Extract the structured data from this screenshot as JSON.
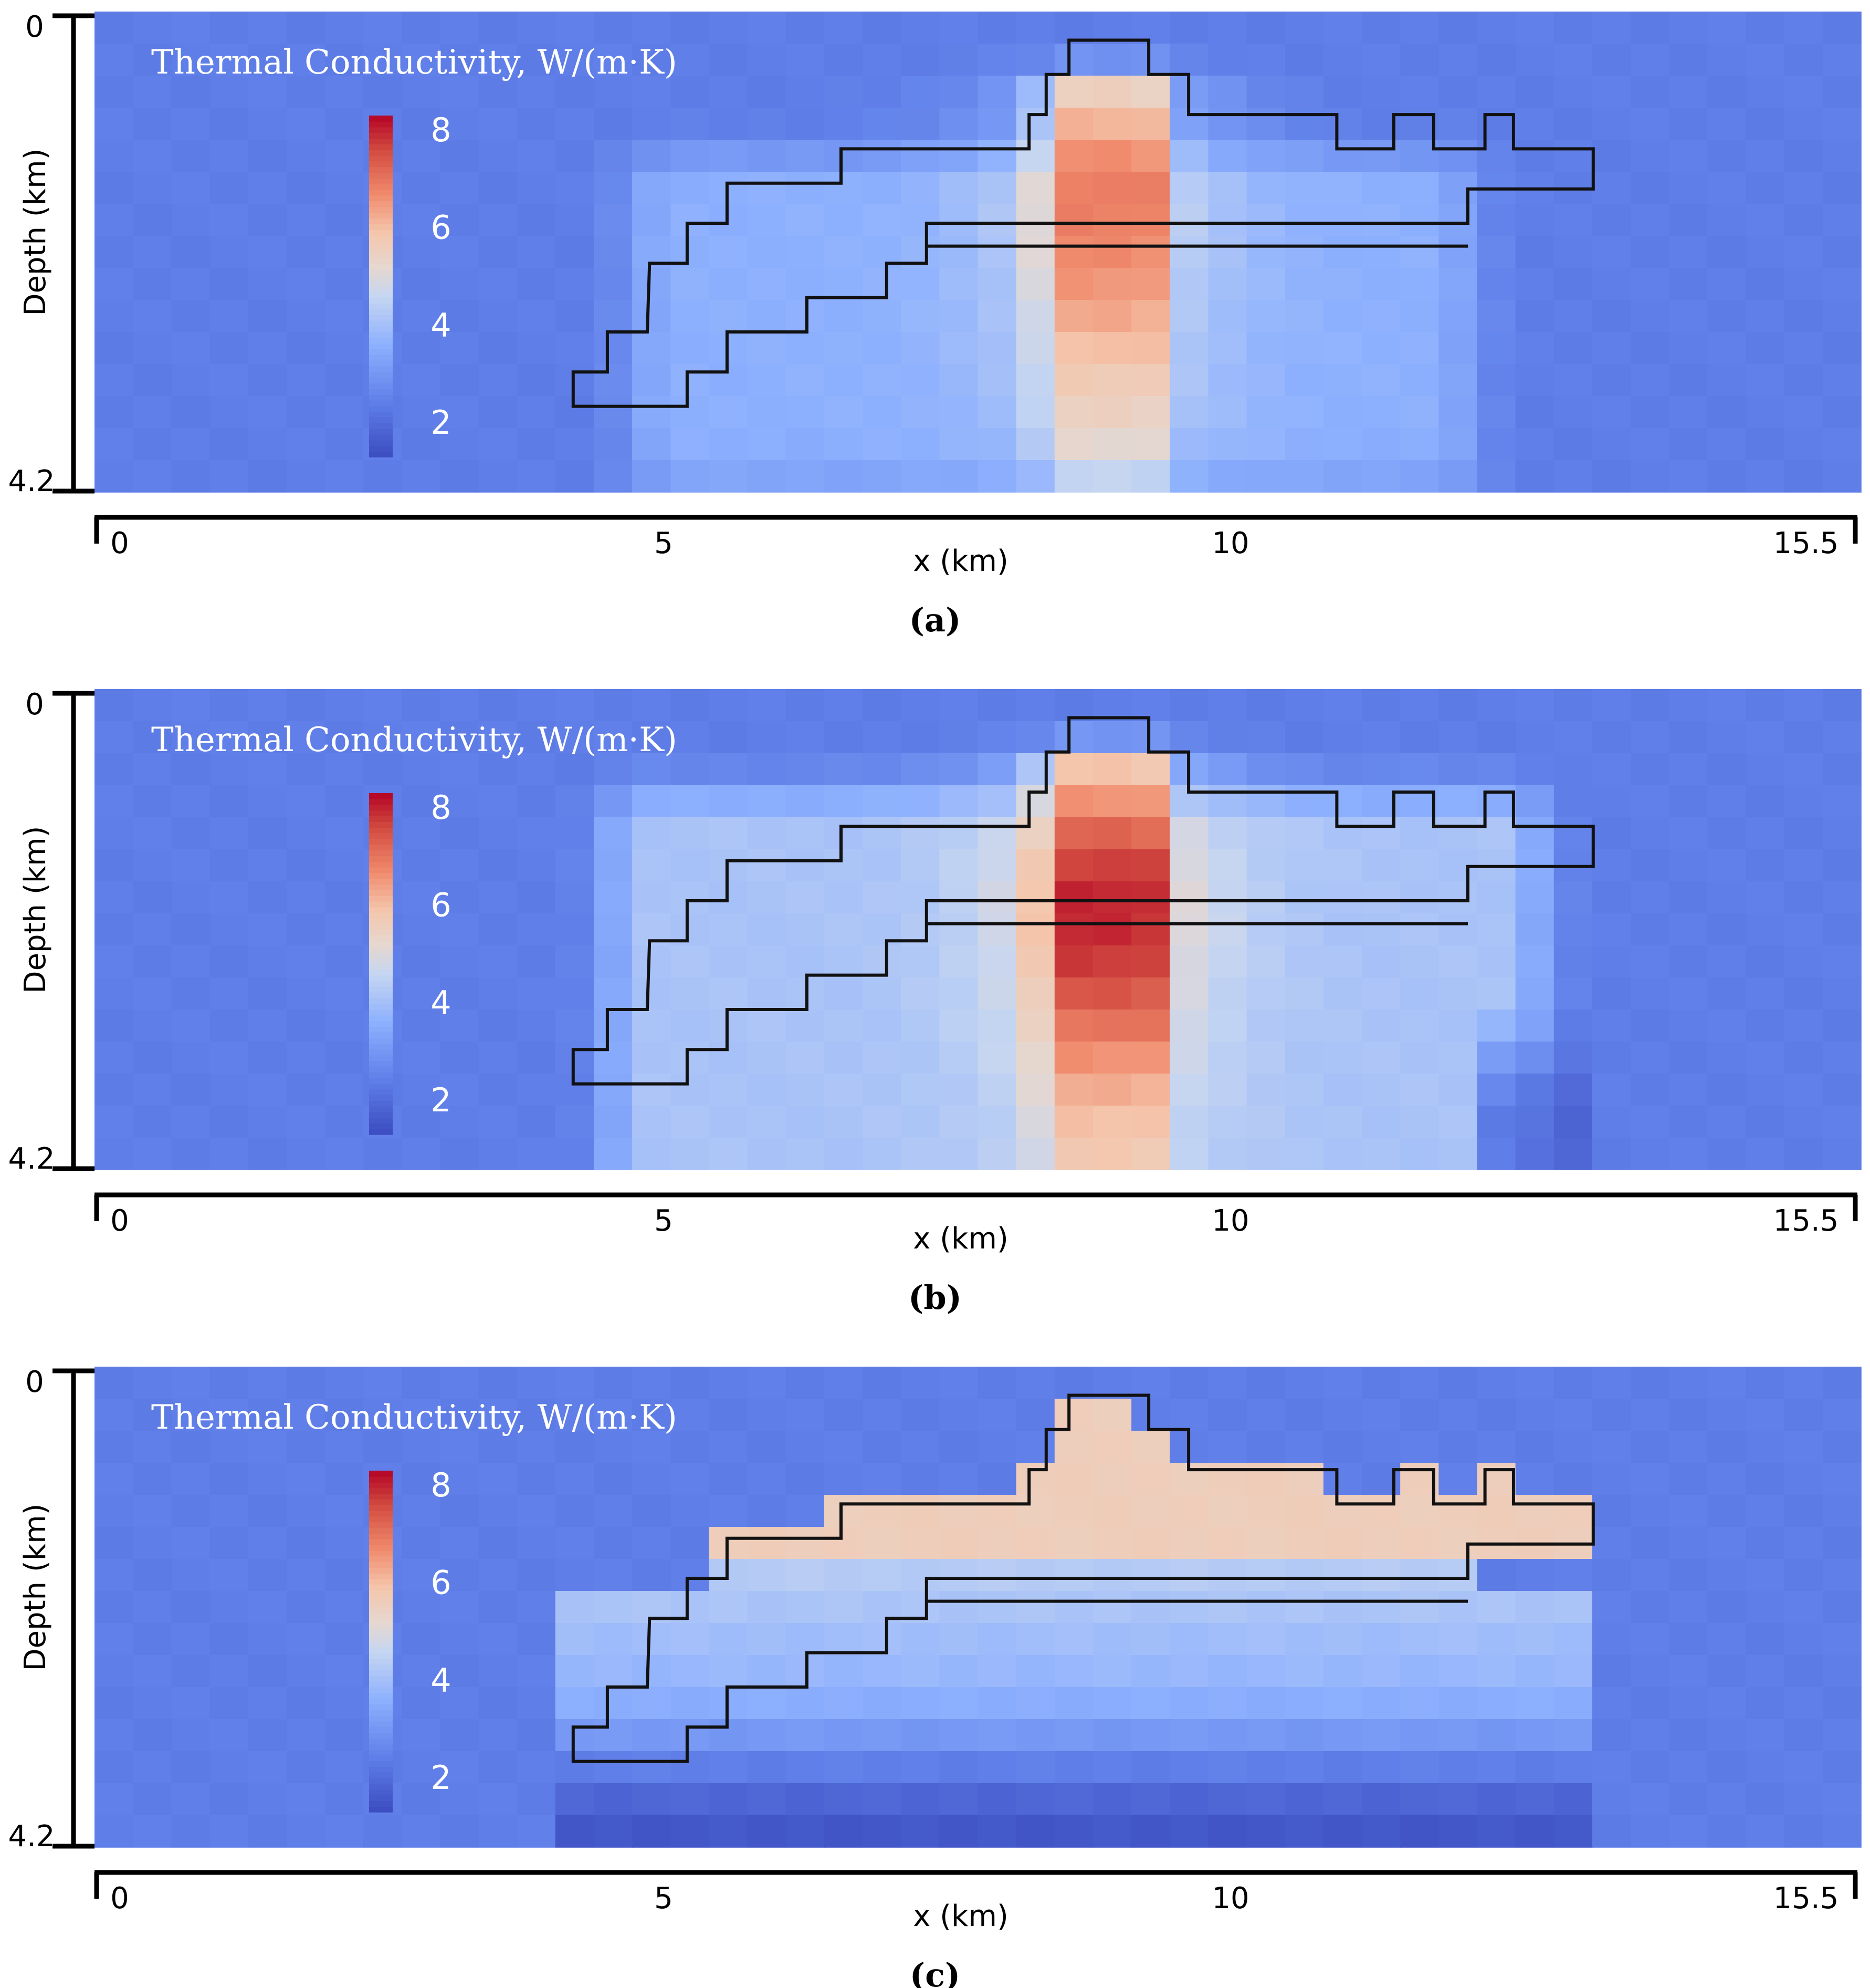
{
  "figure": {
    "panel_captions": [
      "(a)",
      "(b)",
      "(c)"
    ]
  },
  "colors": {
    "background_field": "#5b72b6",
    "scale": [
      {
        "v": 1.3,
        "c": "#3b4cc0"
      },
      {
        "v": 2.5,
        "c": "#6282ea"
      },
      {
        "v": 3.6,
        "c": "#8db0fe"
      },
      {
        "v": 4.6,
        "c": "#c6d6f1"
      },
      {
        "v": 5.2,
        "c": "#e6d7cf"
      },
      {
        "v": 5.9,
        "c": "#f4c6ac"
      },
      {
        "v": 6.7,
        "c": "#f08a6c"
      },
      {
        "v": 7.6,
        "c": "#d24b40"
      },
      {
        "v": 8.3,
        "c": "#b40426"
      }
    ]
  },
  "chart_data": [
    {
      "type": "heatmap",
      "panel": "a",
      "title": "Thermal Conductivity, W/(m·K)",
      "xlabel": "x (km)",
      "ylabel": "Depth (km)",
      "xlim": [
        0,
        15.5
      ],
      "ylim": [
        0,
        4.2
      ],
      "x_ticks": [
        0,
        5,
        10,
        15.5
      ],
      "y_ticks": [
        0,
        4.2
      ],
      "x_tick_labels": [
        "0",
        "5",
        "10",
        "15.5"
      ],
      "y_tick_labels": [
        "0",
        "4.2"
      ],
      "colorbar": {
        "min": 1.3,
        "max": 8.3,
        "ticks": [
          2,
          4,
          6,
          8
        ],
        "tick_labels": [
          "2",
          "4",
          "6",
          "8"
        ]
      },
      "field": {
        "background": 2.4,
        "column": {
          "x0": 8.35,
          "x1": 9.35,
          "peak": 6.9,
          "peak_depth": 1.6,
          "top_value": 4.6
        },
        "halo": {
          "x0": 4.3,
          "x1": 12.5,
          "depth0": 0.9,
          "depth1": 4.2,
          "value": 3.6
        },
        "basement": {
          "x0": 4.1,
          "x1": 13.1,
          "depth0": 4.2,
          "value": 2.4
        }
      },
      "outer_boundary": [
        [
          8.55,
          0.25
        ],
        [
          9.25,
          0.25
        ],
        [
          9.25,
          0.55
        ],
        [
          9.6,
          0.55
        ],
        [
          9.6,
          0.9
        ],
        [
          10.9,
          0.9
        ],
        [
          10.9,
          1.2
        ],
        [
          11.4,
          1.2
        ],
        [
          11.4,
          0.9
        ],
        [
          11.75,
          0.9
        ],
        [
          11.75,
          1.2
        ],
        [
          12.2,
          1.2
        ],
        [
          12.2,
          0.9
        ],
        [
          12.45,
          0.9
        ],
        [
          12.45,
          1.2
        ],
        [
          13.15,
          1.2
        ],
        [
          13.15,
          1.55
        ],
        [
          12.05,
          1.55
        ],
        [
          12.05,
          1.85
        ],
        [
          7.3,
          1.85
        ],
        [
          7.3,
          2.2
        ],
        [
          6.95,
          2.2
        ],
        [
          6.95,
          2.5
        ],
        [
          6.25,
          2.5
        ],
        [
          6.25,
          2.8
        ],
        [
          5.55,
          2.8
        ],
        [
          5.55,
          3.15
        ],
        [
          5.2,
          3.15
        ],
        [
          5.2,
          3.45
        ],
        [
          4.2,
          3.45
        ],
        [
          4.2,
          3.15
        ],
        [
          4.5,
          3.15
        ],
        [
          4.5,
          2.8
        ],
        [
          4.85,
          2.8
        ],
        [
          4.87,
          2.2
        ],
        [
          5.2,
          2.2
        ],
        [
          5.2,
          1.85
        ],
        [
          5.55,
          1.85
        ],
        [
          5.55,
          1.5
        ],
        [
          6.55,
          1.5
        ],
        [
          6.55,
          1.2
        ],
        [
          8.2,
          1.2
        ],
        [
          8.2,
          0.9
        ],
        [
          8.35,
          0.9
        ],
        [
          8.35,
          0.55
        ],
        [
          8.55,
          0.55
        ]
      ],
      "inner_boundary": [
        [
          7.3,
          2.05
        ],
        [
          12.05,
          2.05
        ]
      ]
    },
    {
      "type": "heatmap",
      "panel": "b",
      "title": "Thermal Conductivity, W/(m·K)",
      "xlabel": "x (km)",
      "ylabel": "Depth (km)",
      "xlim": [
        0,
        15.5
      ],
      "ylim": [
        0,
        4.2
      ],
      "x_ticks": [
        0,
        5,
        10,
        15.5
      ],
      "y_ticks": [
        0,
        4.2
      ],
      "x_tick_labels": [
        "0",
        "5",
        "10",
        "15.5"
      ],
      "y_tick_labels": [
        "0",
        "4.2"
      ],
      "colorbar": {
        "min": 1.3,
        "max": 8.3,
        "ticks": [
          2,
          4,
          6,
          8
        ],
        "tick_labels": [
          "2",
          "4",
          "6",
          "8"
        ]
      },
      "field": {
        "background": 2.4,
        "column": {
          "x0": 8.35,
          "x1": 9.35,
          "peak": 8.0,
          "peak_depth": 1.9,
          "top_value": 5.0
        },
        "halo": {
          "x0": 4.1,
          "x1": 13.1,
          "depth0": 0.55,
          "depth1": 4.2,
          "value": 4.1
        },
        "basement": {
          "x0": 12.1,
          "x1": 13.1,
          "depth0": 3.2,
          "value": 1.6
        }
      },
      "outer_boundary": [
        [
          8.55,
          0.25
        ],
        [
          9.25,
          0.25
        ],
        [
          9.25,
          0.55
        ],
        [
          9.6,
          0.55
        ],
        [
          9.6,
          0.9
        ],
        [
          10.9,
          0.9
        ],
        [
          10.9,
          1.2
        ],
        [
          11.4,
          1.2
        ],
        [
          11.4,
          0.9
        ],
        [
          11.75,
          0.9
        ],
        [
          11.75,
          1.2
        ],
        [
          12.2,
          1.2
        ],
        [
          12.2,
          0.9
        ],
        [
          12.45,
          0.9
        ],
        [
          12.45,
          1.2
        ],
        [
          13.15,
          1.2
        ],
        [
          13.15,
          1.55
        ],
        [
          12.05,
          1.55
        ],
        [
          12.05,
          1.85
        ],
        [
          7.3,
          1.85
        ],
        [
          7.3,
          2.2
        ],
        [
          6.95,
          2.2
        ],
        [
          6.95,
          2.5
        ],
        [
          6.25,
          2.5
        ],
        [
          6.25,
          2.8
        ],
        [
          5.55,
          2.8
        ],
        [
          5.55,
          3.15
        ],
        [
          5.2,
          3.15
        ],
        [
          5.2,
          3.45
        ],
        [
          4.2,
          3.45
        ],
        [
          4.2,
          3.15
        ],
        [
          4.5,
          3.15
        ],
        [
          4.5,
          2.8
        ],
        [
          4.85,
          2.8
        ],
        [
          4.87,
          2.2
        ],
        [
          5.2,
          2.2
        ],
        [
          5.2,
          1.85
        ],
        [
          5.55,
          1.85
        ],
        [
          5.55,
          1.5
        ],
        [
          6.55,
          1.5
        ],
        [
          6.55,
          1.2
        ],
        [
          8.2,
          1.2
        ],
        [
          8.2,
          0.9
        ],
        [
          8.35,
          0.9
        ],
        [
          8.35,
          0.55
        ],
        [
          8.55,
          0.55
        ]
      ],
      "inner_boundary": [
        [
          7.3,
          2.05
        ],
        [
          12.05,
          2.05
        ]
      ]
    },
    {
      "type": "heatmap",
      "panel": "c",
      "title": "Thermal Conductivity, W/(m·K)",
      "xlabel": "x (km)",
      "ylabel": "Depth (km)",
      "xlim": [
        0,
        15.5
      ],
      "ylim": [
        0,
        4.2
      ],
      "x_ticks": [
        0,
        5,
        10,
        15.5
      ],
      "y_ticks": [
        0,
        4.2
      ],
      "x_tick_labels": [
        "0",
        "5",
        "10",
        "15.5"
      ],
      "y_tick_labels": [
        "0",
        "4.2"
      ],
      "colorbar": {
        "min": 1.3,
        "max": 8.3,
        "ticks": [
          2,
          4,
          6,
          8
        ],
        "tick_labels": [
          "2",
          "4",
          "6",
          "8"
        ]
      },
      "field": {
        "background": 2.4,
        "layered": {
          "x0": 4.1,
          "x1": 13.1,
          "top_value": 5.5,
          "mid_value": 3.8,
          "mid_depth": 2.6,
          "bottom_value": 1.5,
          "bottom_depth": 4.2
        }
      },
      "outer_boundary": [
        [
          8.55,
          0.25
        ],
        [
          9.25,
          0.25
        ],
        [
          9.25,
          0.55
        ],
        [
          9.6,
          0.55
        ],
        [
          9.6,
          0.9
        ],
        [
          10.9,
          0.9
        ],
        [
          10.9,
          1.2
        ],
        [
          11.4,
          1.2
        ],
        [
          11.4,
          0.9
        ],
        [
          11.75,
          0.9
        ],
        [
          11.75,
          1.2
        ],
        [
          12.2,
          1.2
        ],
        [
          12.2,
          0.9
        ],
        [
          12.45,
          0.9
        ],
        [
          12.45,
          1.2
        ],
        [
          13.15,
          1.2
        ],
        [
          13.15,
          1.55
        ],
        [
          12.05,
          1.55
        ],
        [
          12.05,
          1.85
        ],
        [
          7.3,
          1.85
        ],
        [
          7.3,
          2.2
        ],
        [
          6.95,
          2.2
        ],
        [
          6.95,
          2.5
        ],
        [
          6.25,
          2.5
        ],
        [
          6.25,
          2.8
        ],
        [
          5.55,
          2.8
        ],
        [
          5.55,
          3.15
        ],
        [
          5.2,
          3.15
        ],
        [
          5.2,
          3.45
        ],
        [
          4.2,
          3.45
        ],
        [
          4.2,
          3.15
        ],
        [
          4.5,
          3.15
        ],
        [
          4.5,
          2.8
        ],
        [
          4.85,
          2.8
        ],
        [
          4.87,
          2.2
        ],
        [
          5.2,
          2.2
        ],
        [
          5.2,
          1.85
        ],
        [
          5.55,
          1.85
        ],
        [
          5.55,
          1.5
        ],
        [
          6.55,
          1.5
        ],
        [
          6.55,
          1.2
        ],
        [
          8.2,
          1.2
        ],
        [
          8.2,
          0.9
        ],
        [
          8.35,
          0.9
        ],
        [
          8.35,
          0.55
        ],
        [
          8.55,
          0.55
        ]
      ],
      "inner_boundary": [
        [
          7.3,
          2.05
        ],
        [
          12.05,
          2.05
        ]
      ]
    }
  ]
}
